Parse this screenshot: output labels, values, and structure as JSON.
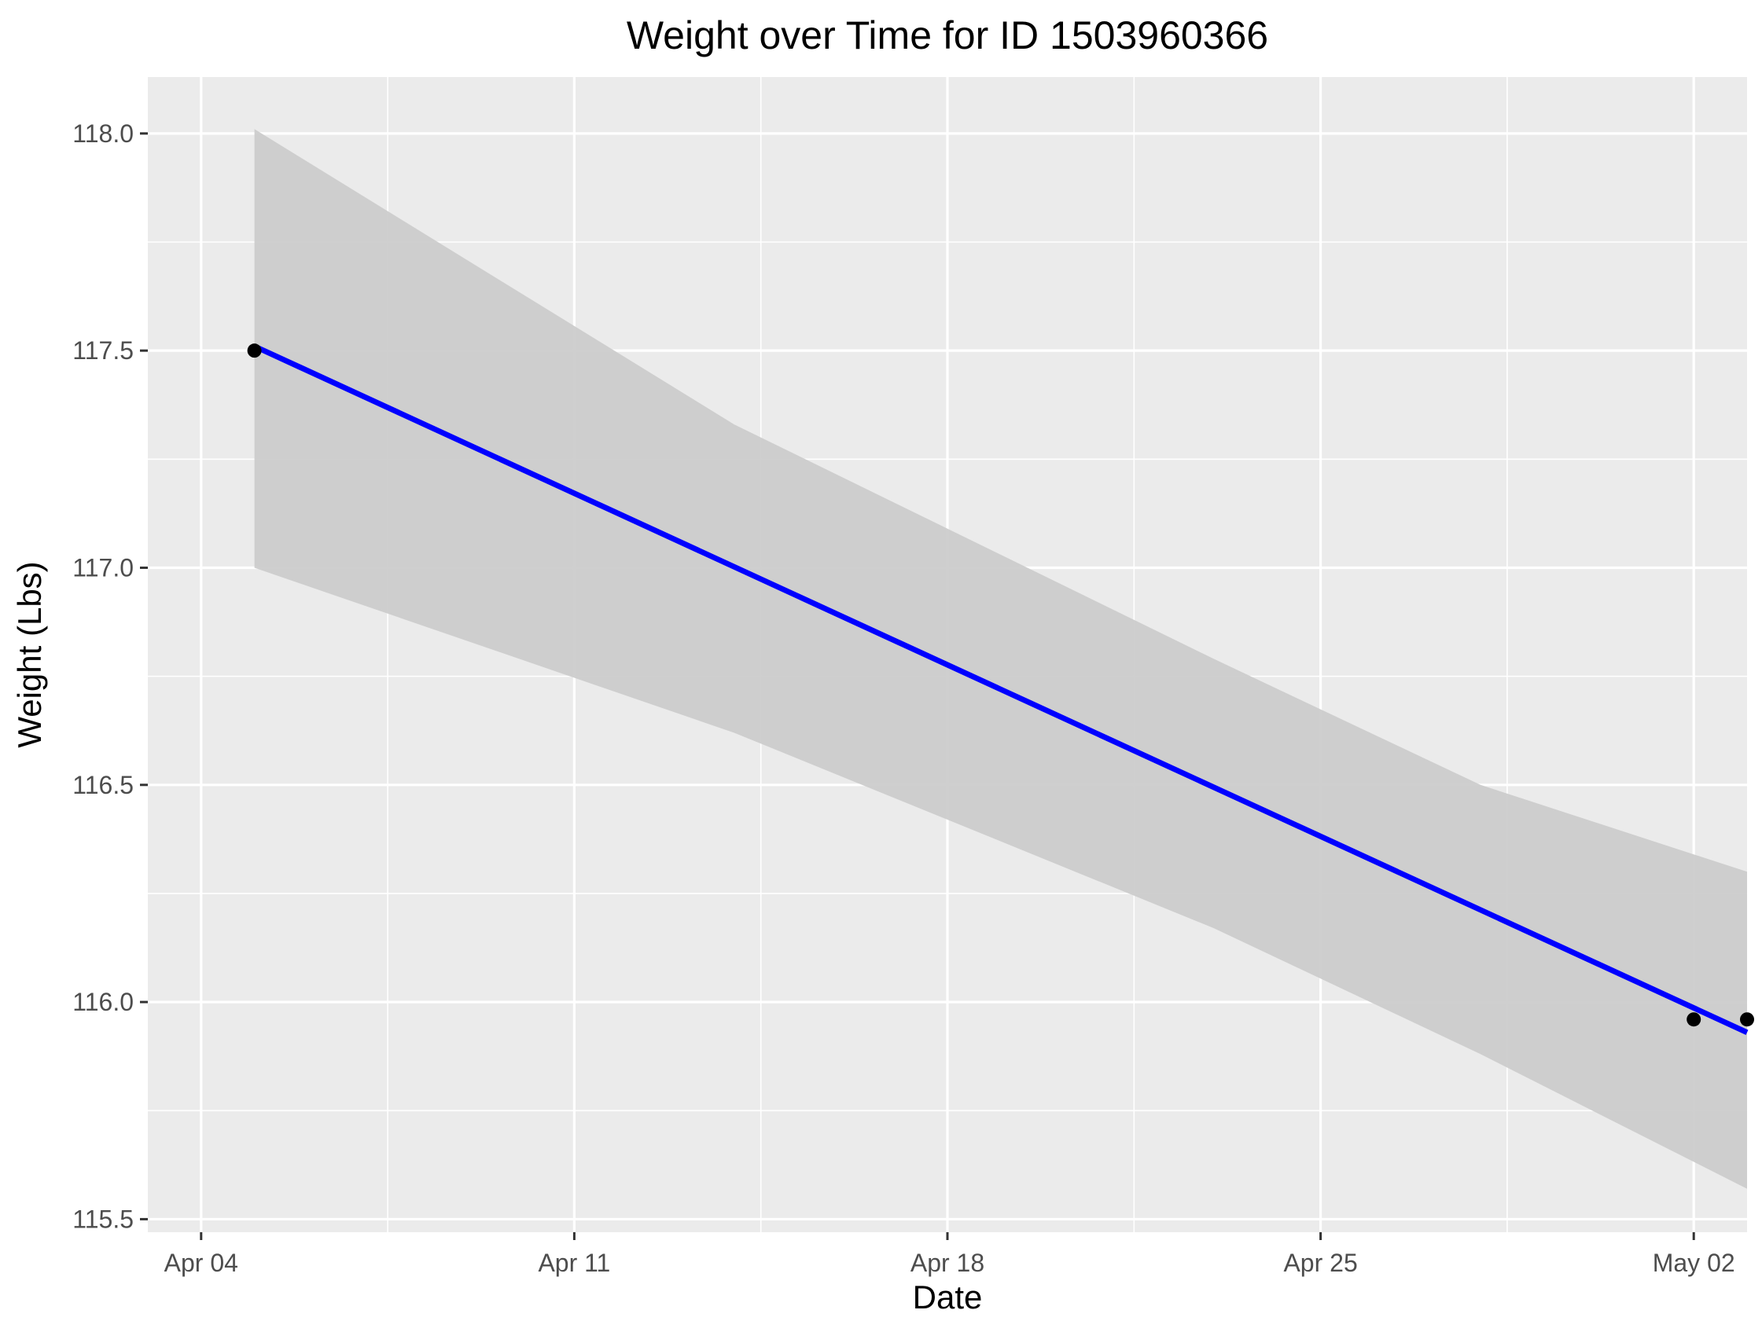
{
  "chart_data": {
    "type": "scatter",
    "title": "Weight over Time for ID 1503960366",
    "xlabel": "Date",
    "ylabel": "Weight (Lbs)",
    "x_type": "date",
    "xlim": [
      "2016-04-03",
      "2016-05-03"
    ],
    "ylim": [
      115.47,
      118.13
    ],
    "x_ticks": [
      {
        "date": "2016-04-04",
        "label": "Apr 04"
      },
      {
        "date": "2016-04-11",
        "label": "Apr 11"
      },
      {
        "date": "2016-04-18",
        "label": "Apr 18"
      },
      {
        "date": "2016-04-25",
        "label": "Apr 25"
      },
      {
        "date": "2016-05-02",
        "label": "May 02"
      }
    ],
    "y_ticks": [
      {
        "value": 115.5,
        "label": "115.5"
      },
      {
        "value": 116.0,
        "label": "116.0"
      },
      {
        "value": 116.5,
        "label": "116.5"
      },
      {
        "value": 117.0,
        "label": "117.0"
      },
      {
        "value": 117.5,
        "label": "117.5"
      },
      {
        "value": 118.0,
        "label": "118.0"
      }
    ],
    "grid": true,
    "points": [
      {
        "x": "2016-04-05",
        "y": 117.5
      },
      {
        "x": "2016-05-02",
        "y": 115.96
      },
      {
        "x": "2016-05-03",
        "y": 115.96
      }
    ],
    "trend_line": {
      "method": "linear regression",
      "color": "#0000ff",
      "start": {
        "x": "2016-04-05",
        "y": 117.51
      },
      "end": {
        "x": "2016-05-03",
        "y": 115.93
      }
    },
    "confidence_band": {
      "color": "#cccccc",
      "upper": [
        {
          "x": "2016-04-05",
          "y": 118.01
        },
        {
          "x": "2016-04-14",
          "y": 117.33
        },
        {
          "x": "2016-04-23",
          "y": 116.79
        },
        {
          "x": "2016-04-28",
          "y": 116.5
        },
        {
          "x": "2016-05-03",
          "y": 116.3
        }
      ],
      "lower": [
        {
          "x": "2016-04-05",
          "y": 117.0
        },
        {
          "x": "2016-04-14",
          "y": 116.62
        },
        {
          "x": "2016-04-23",
          "y": 116.17
        },
        {
          "x": "2016-04-28",
          "y": 115.88
        },
        {
          "x": "2016-05-03",
          "y": 115.57
        }
      ]
    },
    "colors": {
      "panel_background": "#ebebeb",
      "grid_line": "#ffffff",
      "point": "#000000"
    }
  }
}
